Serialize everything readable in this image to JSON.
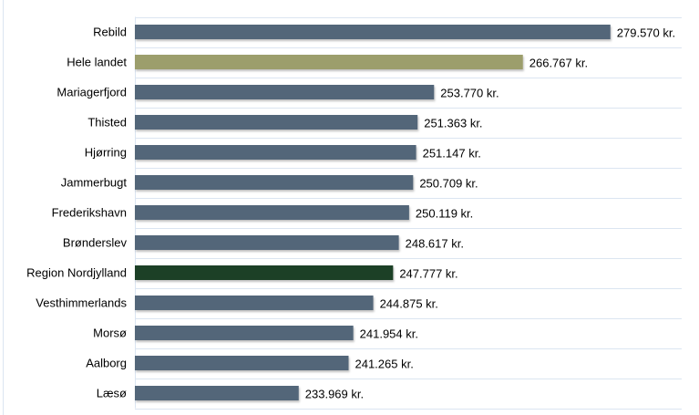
{
  "chart_data": {
    "type": "bar",
    "orientation": "horizontal",
    "title": "",
    "xlabel": "",
    "ylabel": "",
    "xlim": [
      210000,
      290000
    ],
    "grid": "horizontal category separators",
    "categories": [
      "Rebild",
      "Hele landet",
      "Mariagerfjord",
      "Thisted",
      "Hjørring",
      "Jammerbugt",
      "Frederikshavn",
      "Brønderslev",
      "Region Nordjylland",
      "Vesthimmerlands",
      "Morsø",
      "Aalborg",
      "Læsø"
    ],
    "values": [
      279570,
      266767,
      253770,
      251363,
      251147,
      250709,
      250119,
      248617,
      247777,
      244875,
      241954,
      241265,
      233969
    ],
    "labels": [
      "279.570 kr.",
      "266.767 kr.",
      "253.770 kr.",
      "251.363 kr.",
      "251.147 kr.",
      "250.709 kr.",
      "250.119 kr.",
      "248.617 kr.",
      "247.777 kr.",
      "244.875 kr.",
      "241.954 kr.",
      "241.265 kr.",
      "233.969 kr."
    ],
    "colors": [
      "#536679",
      "#9c9e6c",
      "#536679",
      "#536679",
      "#536679",
      "#536679",
      "#536679",
      "#536679",
      "#1f3f27",
      "#536679",
      "#536679",
      "#536679",
      "#536679"
    ]
  }
}
